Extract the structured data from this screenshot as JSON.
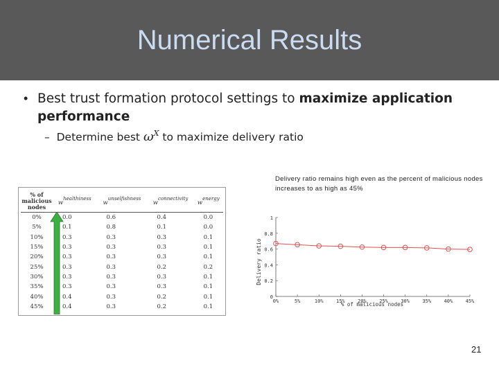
{
  "slide": {
    "title": "Numerical Results",
    "bullet": {
      "plain": "Best trust formation protocol settings to ",
      "bold": "maximize application performance"
    },
    "sub_bullet": {
      "prefix": "Determine best ",
      "symbol": "ω",
      "superscript": "X",
      "suffix": " to maximize delivery ratio"
    },
    "annotation": "Delivery ratio remains high even as the percent of malicious nodes increases to as high as 45%",
    "page_number": "21"
  },
  "table": {
    "header_first": "% of malicious nodes",
    "columns": [
      {
        "w": "w",
        "sup": "healthiness"
      },
      {
        "w": "w",
        "sup": "unselfishness"
      },
      {
        "w": "w",
        "sup": "connectivity"
      },
      {
        "w": "w",
        "sup": "energy"
      }
    ],
    "rows": [
      [
        "0%",
        "0.0",
        "0.6",
        "0.4",
        "0.0"
      ],
      [
        "5%",
        "0.1",
        "0.8",
        "0.1",
        "0.0"
      ],
      [
        "10%",
        "0.3",
        "0.3",
        "0.3",
        "0.1"
      ],
      [
        "15%",
        "0.3",
        "0.3",
        "0.3",
        "0.1"
      ],
      [
        "20%",
        "0.3",
        "0.3",
        "0.3",
        "0.1"
      ],
      [
        "25%",
        "0.3",
        "0.3",
        "0.2",
        "0.2"
      ],
      [
        "30%",
        "0.3",
        "0.3",
        "0.3",
        "0.1"
      ],
      [
        "35%",
        "0.3",
        "0.3",
        "0.3",
        "0.1"
      ],
      [
        "40%",
        "0.4",
        "0.3",
        "0.2",
        "0.1"
      ],
      [
        "45%",
        "0.4",
        "0.3",
        "0.2",
        "0.1"
      ]
    ]
  },
  "chart_data": {
    "type": "line",
    "x": [
      "0%",
      "5%",
      "10%",
      "15%",
      "20%",
      "25%",
      "30%",
      "35%",
      "40%",
      "45%"
    ],
    "values": [
      0.67,
      0.655,
      0.64,
      0.635,
      0.625,
      0.62,
      0.62,
      0.615,
      0.6,
      0.595
    ],
    "ylabel": "Delivery ratio",
    "xlabel": "% of malicious nodes",
    "yticks": [
      "0",
      "0.2",
      "0.4",
      "0.6",
      "0.8",
      "1"
    ],
    "ylim": [
      0,
      1
    ],
    "grid": false,
    "line_color": "#e05050"
  },
  "colors": {
    "header_bg": "#595959",
    "title_text": "#c9dcf2",
    "arrow_green": "#3cb043"
  }
}
